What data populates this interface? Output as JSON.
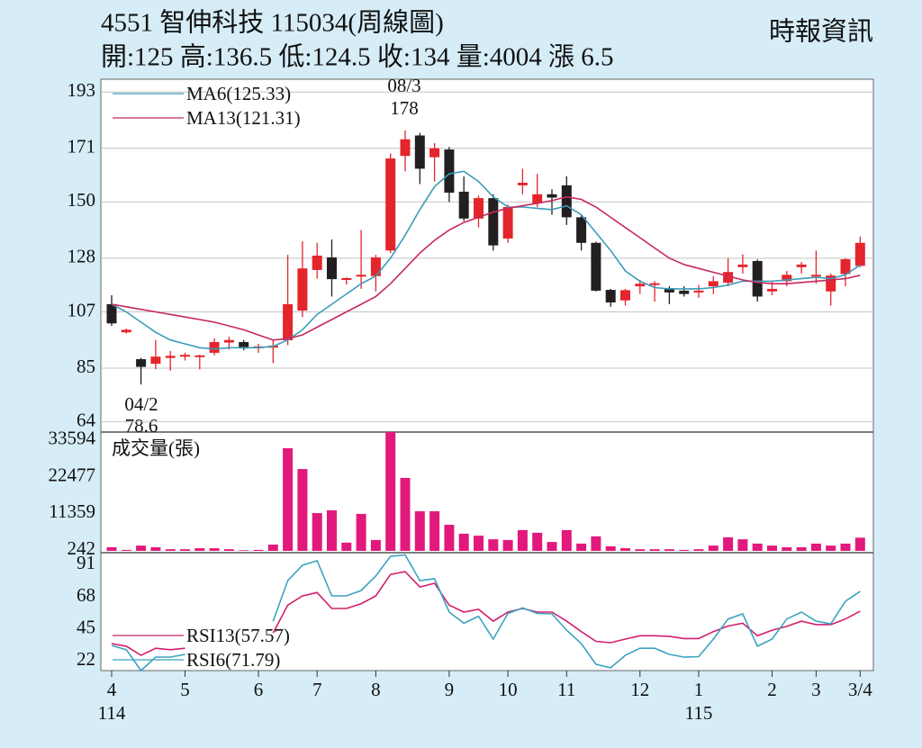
{
  "header": {
    "title": "4551  智伸科技 115034(周線圖)",
    "quote": "開:125 高:136.5 低:124.5 收:134 量:4004 漲 6.5",
    "source": "時報資訊"
  },
  "chart_data": [
    {
      "type": "candlestick",
      "ylim": [
        60,
        198
      ],
      "yticks": [
        193,
        171,
        150,
        128,
        107,
        85,
        64
      ],
      "grid": true,
      "up_color": "#e4252b",
      "down_color": "#231f20",
      "open": [
        110,
        99,
        88.5,
        86.7,
        89,
        89.5,
        89.5,
        91,
        95,
        95.2,
        93,
        93,
        95.9,
        107.5,
        123.4,
        128.3,
        119.5,
        120.8,
        121,
        131,
        168,
        176,
        167.5,
        170.5,
        154,
        143.5,
        151.5,
        135.7,
        156.5,
        149.5,
        153,
        156.5,
        144,
        134,
        115.6,
        111.5,
        117,
        117.5,
        116.3,
        115.3,
        115,
        117,
        118.4,
        124.5,
        126.9,
        115,
        119,
        124.5,
        121,
        115,
        121.8,
        125
      ],
      "high": [
        113.5,
        100.5,
        89,
        96,
        91.7,
        91,
        90.3,
        96.6,
        97.3,
        96,
        94.5,
        96,
        129.3,
        134.6,
        134,
        135.3,
        120.5,
        139,
        129.3,
        169,
        178,
        177,
        173,
        171.5,
        160,
        152.5,
        153,
        149,
        163,
        161,
        155,
        160,
        145,
        134.5,
        116,
        116,
        119.5,
        119,
        117,
        117,
        117.5,
        121,
        128,
        129.5,
        127.5,
        119,
        123,
        126.5,
        131,
        122,
        128,
        136.5
      ],
      "low": [
        101.5,
        98.5,
        78.6,
        84.6,
        84,
        88,
        84.5,
        90,
        92.3,
        92,
        91,
        87,
        94,
        105,
        120,
        113,
        117.7,
        116,
        115,
        130,
        162,
        157,
        158,
        150,
        142.5,
        140,
        131,
        134,
        153,
        148,
        145,
        141,
        131,
        115,
        109,
        109.5,
        114,
        111,
        110,
        113,
        112.5,
        114,
        117,
        122,
        111,
        113.5,
        117,
        122,
        118,
        109.5,
        117,
        124.5
      ],
      "close": [
        102.5,
        100,
        85.5,
        89.5,
        89.8,
        90.2,
        90,
        95.2,
        96,
        92.7,
        93.5,
        93.8,
        110,
        124,
        129,
        119.8,
        120.2,
        121.5,
        128.3,
        167,
        174.5,
        163,
        171,
        153.6,
        143.5,
        151.5,
        133,
        148,
        157.5,
        153,
        151.7,
        144,
        134,
        115.3,
        110.7,
        115.5,
        118,
        118.2,
        114.6,
        114,
        115.3,
        119,
        122.6,
        125.5,
        113,
        116,
        121.5,
        125.5,
        121.5,
        121.2,
        127.6,
        134
      ],
      "series": [
        {
          "name": "MA6(125.33)",
          "color": "#3b9cb8",
          "values": [
            110,
            107,
            103,
            99,
            96,
            94.5,
            93,
            92.5,
            93,
            93,
            93,
            93.5,
            96,
            100,
            106,
            110,
            114,
            118,
            121,
            128,
            137,
            147,
            156,
            161,
            162,
            158,
            152,
            148,
            148,
            147.5,
            147,
            148.5,
            145,
            138,
            131,
            123,
            119,
            116.5,
            116,
            116,
            116,
            116.5,
            117.5,
            119,
            119,
            119,
            119.5,
            120,
            120.5,
            120,
            121.5,
            125.33
          ]
        },
        {
          "name": "MA13(121.31)",
          "color": "#c8285e",
          "values": [
            110,
            109,
            108,
            107,
            106,
            105,
            104,
            103,
            101.5,
            100,
            98,
            96,
            96.5,
            98,
            101,
            104,
            107,
            110,
            113,
            118,
            124,
            130,
            135,
            139,
            142,
            144,
            146,
            147.5,
            148.5,
            149.5,
            150.5,
            152,
            151,
            148,
            144,
            140,
            136,
            132,
            128,
            125.5,
            124,
            122.5,
            121,
            119.5,
            118.5,
            118,
            118,
            118.5,
            119,
            119.5,
            120,
            121.31
          ]
        }
      ],
      "annotations": [
        {
          "date": "08/3",
          "value": 178
        },
        {
          "date": "04/2",
          "value": 78.6
        }
      ]
    },
    {
      "type": "bar",
      "ylim": [
        0,
        36000
      ],
      "yticks": [
        33594,
        22477,
        11359,
        242
      ],
      "grid": false,
      "series": [
        {
          "name": "成交量(張)",
          "color": "#e2197c",
          "values": [
            1100,
            300,
            1600,
            1100,
            500,
            500,
            800,
            800,
            500,
            200,
            300,
            1900,
            31100,
            24800,
            11450,
            12300,
            2500,
            11200,
            3300,
            36000,
            22100,
            12000,
            12000,
            7900,
            5200,
            4600,
            3500,
            3300,
            6300,
            5500,
            2700,
            6300,
            2200,
            4400,
            1400,
            800,
            500,
            500,
            500,
            300,
            500,
            1600,
            4100,
            3500,
            2200,
            1600,
            1100,
            1100,
            2200,
            1600,
            2200,
            4004
          ]
        }
      ]
    },
    {
      "type": "line",
      "ylim": [
        15,
        99
      ],
      "yticks": [
        91,
        68,
        45,
        22
      ],
      "grid": false,
      "categories": [
        "4",
        null,
        null,
        null,
        null,
        "5",
        null,
        null,
        null,
        null,
        "6",
        null,
        null,
        null,
        "7",
        null,
        null,
        null,
        "8",
        null,
        null,
        null,
        null,
        "9",
        null,
        null,
        null,
        "10",
        null,
        null,
        null,
        "11",
        null,
        null,
        null,
        null,
        "12",
        null,
        null,
        null,
        "1",
        null,
        null,
        null,
        null,
        "2",
        null,
        null,
        "3",
        null,
        null,
        "3/4"
      ],
      "years": [
        "114",
        null,
        null,
        null,
        null,
        null,
        null,
        null,
        null,
        null,
        null,
        null,
        null,
        null,
        null,
        null,
        null,
        null,
        null,
        null,
        null,
        null,
        null,
        null,
        null,
        null,
        null,
        null,
        null,
        null,
        null,
        null,
        null,
        null,
        null,
        null,
        null,
        null,
        null,
        null,
        "115",
        null,
        null,
        null,
        null,
        null,
        null,
        null,
        null,
        null,
        null,
        null
      ],
      "series": [
        {
          "name": "RSI13(57.57)",
          "color": "#d2206b",
          "values": [
            34.4,
            32.5,
            26,
            31,
            30,
            31,
            null,
            null,
            null,
            null,
            null,
            42,
            62,
            68.6,
            71,
            59.6,
            59.6,
            63,
            68.6,
            84,
            86,
            75,
            77.7,
            62,
            57,
            59,
            50.5,
            57,
            59.6,
            57,
            57,
            50.5,
            43,
            36,
            35,
            37.6,
            40,
            40,
            39.6,
            38,
            38,
            43,
            47,
            49,
            40,
            44,
            46.7,
            50.5,
            48,
            48,
            52,
            57.57
          ]
        },
        {
          "name": "RSI6(71.79)",
          "color": "#3aa3c0",
          "values": [
            33,
            30,
            15,
            24.7,
            24.7,
            26.6,
            null,
            null,
            null,
            null,
            null,
            50.5,
            79.6,
            90.6,
            93.8,
            68.6,
            68.6,
            72.5,
            83,
            97,
            98,
            79.6,
            81,
            57,
            49,
            54,
            37.6,
            56,
            60,
            56,
            55.7,
            44,
            34.4,
            19.5,
            17,
            26,
            31,
            31,
            26.6,
            24.7,
            25,
            37.6,
            52,
            55.7,
            32.5,
            37.6,
            52,
            57,
            50.5,
            48.6,
            64.8,
            71.79
          ]
        }
      ]
    }
  ]
}
